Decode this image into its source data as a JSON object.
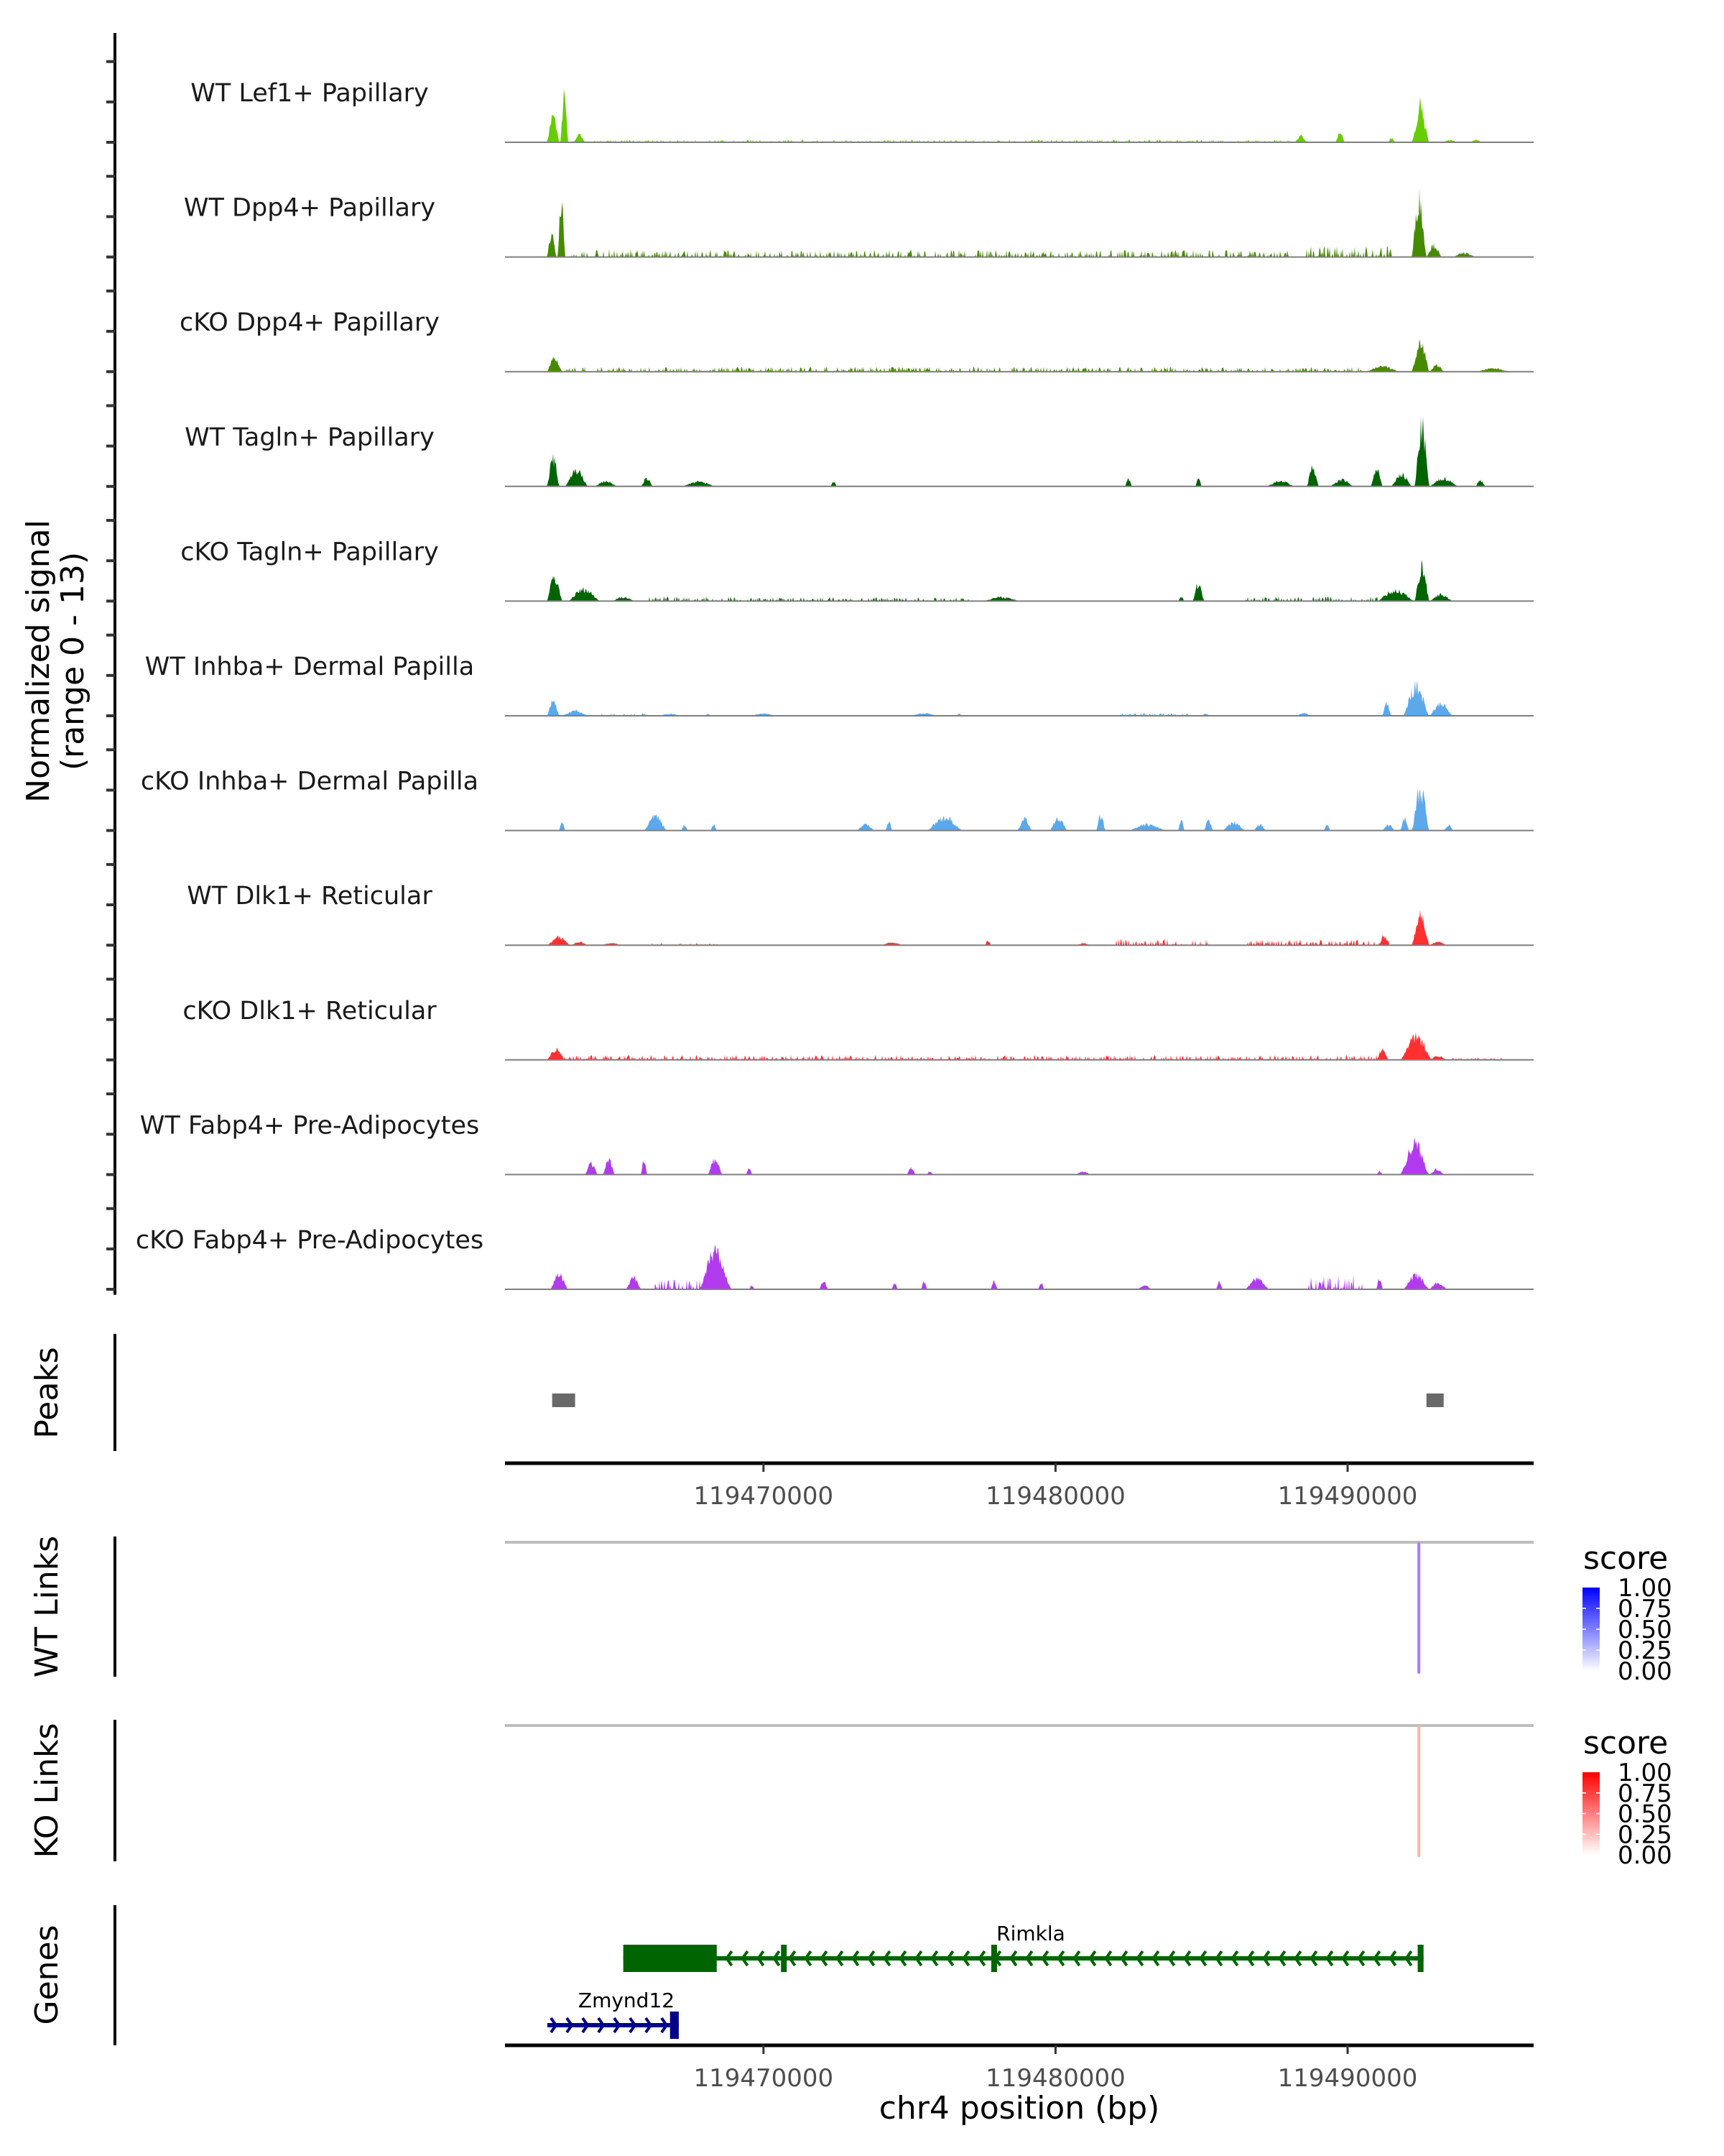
{
  "chart_data": {
    "type": "area",
    "title": "",
    "chromosome": "chr4",
    "xlabel": "chr4 position (bp)",
    "xlim": [
      119461150,
      119496370
    ],
    "xticks": [
      119470000,
      119480000,
      119490000
    ],
    "xtick_labels": [
      "119470000",
      "119480000",
      "119490000"
    ],
    "signal_ylabel": "Normalized signal",
    "signal_ylabel_range": "(range 0 - 13)",
    "signal_ylim": [
      0,
      13
    ],
    "signal_ticks": [
      0,
      5,
      10
    ],
    "coverage_tracks": [
      {
        "name": "WT Lef1+ Papillary",
        "color": "#66CD00",
        "peaks": [
          [
            119462600,
            119463000,
            4.0
          ],
          [
            119463050,
            119463300,
            7.0
          ],
          [
            119463500,
            119463900,
            1.2
          ],
          [
            119464200,
            119466000,
            0.3
          ],
          [
            119466000,
            119488000,
            0.35
          ],
          [
            119488200,
            119488600,
            1.0
          ],
          [
            119489600,
            119489900,
            1.6
          ],
          [
            119491400,
            119491600,
            0.6
          ],
          [
            119492200,
            119492800,
            4.3
          ],
          [
            119492300,
            119492700,
            6.2
          ],
          [
            119493200,
            119493800,
            0.3
          ],
          [
            119494200,
            119494600,
            0.4
          ]
        ]
      },
      {
        "name": "WT Dpp4+ Papillary",
        "color": "#458B00",
        "peaks": [
          [
            119462600,
            119462900,
            3.5
          ],
          [
            119462950,
            119463200,
            8.0
          ],
          [
            119463400,
            119466000,
            1.0
          ],
          [
            119466000,
            119488000,
            0.9
          ],
          [
            119488600,
            119491500,
            1.4
          ],
          [
            119492200,
            119492700,
            8.8
          ],
          [
            119492700,
            119493200,
            1.8
          ],
          [
            119493600,
            119494400,
            0.6
          ]
        ]
      },
      {
        "name": "cKO Dpp4+ Papillary",
        "color": "#458B00",
        "peaks": [
          [
            119462600,
            119463100,
            2.0
          ],
          [
            119463200,
            119465000,
            0.6
          ],
          [
            119465000,
            119490500,
            0.6
          ],
          [
            119490600,
            119491800,
            0.8
          ],
          [
            119492200,
            119492800,
            4.8
          ],
          [
            119492800,
            119493300,
            1.0
          ],
          [
            119494400,
            119495600,
            0.5
          ]
        ]
      },
      {
        "name": "WT Tagln+ Papillary",
        "color": "#006400",
        "peaks": [
          [
            119462600,
            119463000,
            4.2
          ],
          [
            119463200,
            119464000,
            2.5
          ],
          [
            119464200,
            119465000,
            0.8
          ],
          [
            119465800,
            119466200,
            1.2
          ],
          [
            119467200,
            119468400,
            0.7
          ],
          [
            119472300,
            119472500,
            0.7
          ],
          [
            119482400,
            119482600,
            1.2
          ],
          [
            119484800,
            119485000,
            1.2
          ],
          [
            119487200,
            119488200,
            0.8
          ],
          [
            119488600,
            119489000,
            3.0
          ],
          [
            119489400,
            119490200,
            1.0
          ],
          [
            119490800,
            119491200,
            2.5
          ],
          [
            119491500,
            119492200,
            1.8
          ],
          [
            119492300,
            119492800,
            9.0
          ],
          [
            119492800,
            119493800,
            1.2
          ],
          [
            119494400,
            119494700,
            1.0
          ]
        ]
      },
      {
        "name": "cKO Tagln+ Papillary",
        "color": "#006400",
        "peaks": [
          [
            119462600,
            119463100,
            3.8
          ],
          [
            119463300,
            119464400,
            1.8
          ],
          [
            119464800,
            119465600,
            0.6
          ],
          [
            119466000,
            119469000,
            0.6
          ],
          [
            119469000,
            119477000,
            0.5
          ],
          [
            119477500,
            119478800,
            0.6
          ],
          [
            119484200,
            119484400,
            0.7
          ],
          [
            119484700,
            119485100,
            2.6
          ],
          [
            119486500,
            119491000,
            0.6
          ],
          [
            119491000,
            119492300,
            1.6
          ],
          [
            119492300,
            119492800,
            5.3
          ],
          [
            119492800,
            119493600,
            1.0
          ]
        ]
      },
      {
        "name": "WT Inhba+ Dermal Papilla",
        "color": "#5CA8EB",
        "peaks": [
          [
            119462600,
            119463000,
            2.3
          ],
          [
            119463100,
            119464000,
            0.8
          ],
          [
            119464400,
            119466000,
            0.3
          ],
          [
            119466400,
            119467200,
            0.3
          ],
          [
            119468000,
            119468200,
            0.3
          ],
          [
            119469500,
            119470500,
            0.3
          ],
          [
            119475000,
            119476000,
            0.4
          ],
          [
            119476600,
            119476800,
            0.3
          ],
          [
            119482300,
            119484500,
            0.4
          ],
          [
            119485000,
            119485300,
            0.3
          ],
          [
            119488300,
            119488700,
            0.5
          ],
          [
            119491200,
            119491500,
            1.8
          ],
          [
            119491900,
            119492800,
            4.5
          ],
          [
            119492800,
            119493600,
            1.8
          ]
        ]
      },
      {
        "name": "cKO Inhba+ Dermal Papilla",
        "color": "#5CA8EB",
        "peaks": [
          [
            119463000,
            119463200,
            1.2
          ],
          [
            119465900,
            119466700,
            2.2
          ],
          [
            119467200,
            119467400,
            0.9
          ],
          [
            119468200,
            119468400,
            0.9
          ],
          [
            119473200,
            119473800,
            0.9
          ],
          [
            119474200,
            119474400,
            1.5
          ],
          [
            119475600,
            119476800,
            2.0
          ],
          [
            119478700,
            119479200,
            1.8
          ],
          [
            119479800,
            119480400,
            1.8
          ],
          [
            119481400,
            119481700,
            2.3
          ],
          [
            119482500,
            119483800,
            0.9
          ],
          [
            119484200,
            119484400,
            1.5
          ],
          [
            119485100,
            119485400,
            1.5
          ],
          [
            119485700,
            119486500,
            1.2
          ],
          [
            119486800,
            119487200,
            0.9
          ],
          [
            119489200,
            119489400,
            0.9
          ],
          [
            119491200,
            119491600,
            0.9
          ],
          [
            119491800,
            119492100,
            1.8
          ],
          [
            119492200,
            119492800,
            6.2
          ],
          [
            119493300,
            119493600,
            0.9
          ]
        ]
      },
      {
        "name": "WT Dlk1+ Reticular",
        "color": "#FF3030",
        "peaks": [
          [
            119462600,
            119463400,
            1.2
          ],
          [
            119463400,
            119464000,
            0.5
          ],
          [
            119464400,
            119465200,
            0.3
          ],
          [
            119466200,
            119468400,
            0.3
          ],
          [
            119474000,
            119474800,
            0.4
          ],
          [
            119477600,
            119477800,
            0.7
          ],
          [
            119480700,
            119481200,
            0.3
          ],
          [
            119482100,
            119485200,
            0.8
          ],
          [
            119486600,
            119491500,
            0.7
          ],
          [
            119491100,
            119491400,
            1.5
          ],
          [
            119492200,
            119492800,
            4.8
          ],
          [
            119492800,
            119493400,
            0.5
          ]
        ]
      },
      {
        "name": "cKO Dlk1+ Reticular",
        "color": "#FF3030",
        "peaks": [
          [
            119462600,
            119463200,
            1.6
          ],
          [
            119463200,
            119491000,
            0.6
          ],
          [
            119491000,
            119491400,
            1.5
          ],
          [
            119491800,
            119492900,
            3.5
          ],
          [
            119492800,
            119493400,
            0.6
          ],
          [
            119493600,
            119495300,
            0.3
          ]
        ]
      },
      {
        "name": "WT Fabp4+ Pre-Adipocytes",
        "color": "#B23AEE",
        "peaks": [
          [
            119463900,
            119464300,
            1.8
          ],
          [
            119464500,
            119464900,
            2.3
          ],
          [
            119465800,
            119466000,
            2.3
          ],
          [
            119468100,
            119468600,
            2.3
          ],
          [
            119469400,
            119469600,
            1.0
          ],
          [
            119474900,
            119475200,
            1.0
          ],
          [
            119475600,
            119475800,
            0.5
          ],
          [
            119480700,
            119481200,
            0.5
          ],
          [
            119491000,
            119491200,
            0.5
          ],
          [
            119491800,
            119492800,
            4.8
          ],
          [
            119492800,
            119493300,
            0.8
          ]
        ]
      },
      {
        "name": "cKO Fabp4+ Pre-Adipocytes",
        "color": "#B23AEE",
        "peaks": [
          [
            119462700,
            119463300,
            2.3
          ],
          [
            119465300,
            119465800,
            1.8
          ],
          [
            119466200,
            119467800,
            1.2
          ],
          [
            119467800,
            119468900,
            6.0
          ],
          [
            119469500,
            119469700,
            0.5
          ],
          [
            119471900,
            119472200,
            1.2
          ],
          [
            119474400,
            119474600,
            1.0
          ],
          [
            119475400,
            119475600,
            1.2
          ],
          [
            119477800,
            119478000,
            1.2
          ],
          [
            119479400,
            119479600,
            1.0
          ],
          [
            119482800,
            119483300,
            0.6
          ],
          [
            119485500,
            119485700,
            1.4
          ],
          [
            119486500,
            119487300,
            1.6
          ],
          [
            119488600,
            119490500,
            1.8
          ],
          [
            119491000,
            119491200,
            1.8
          ],
          [
            119491900,
            119492800,
            2.2
          ],
          [
            119492800,
            119493400,
            1.0
          ]
        ]
      }
    ],
    "peaks_track": {
      "label": "Peaks",
      "color": "#696969",
      "regions": [
        [
          119462765,
          119463551
        ],
        [
          119492700,
          119493290
        ]
      ]
    },
    "links_tracks": [
      {
        "label": "WT Links",
        "legend_title": "score",
        "low_color": "#FFFFFF",
        "high_color": "#0000FF",
        "legend_ticks": [
          "1.00",
          "0.75",
          "0.50",
          "0.25",
          "0.00"
        ],
        "links": [
          {
            "position": 119492440,
            "score": 0.55,
            "color": "#A87BFF"
          }
        ]
      },
      {
        "label": "KO Links",
        "legend_title": "score",
        "low_color": "#FFFFFF",
        "high_color": "#FF0000",
        "legend_ticks": [
          "1.00",
          "0.75",
          "0.50",
          "0.25",
          "0.00"
        ],
        "links": [
          {
            "position": 119492440,
            "score": 0.35,
            "color": "#FBB4A0"
          }
        ]
      }
    ],
    "genes_track": {
      "label": "Genes",
      "genes": [
        {
          "name": "Rimkla",
          "strand": "-",
          "start": 119465200,
          "end": 119492600,
          "color": "#006400",
          "utr": [
            [
              119465200,
              119468400
            ]
          ],
          "exons": [
            [
              119470600,
              119470700
            ],
            [
              119477800,
              119477950
            ],
            [
              119492400,
              119492600
            ]
          ]
        },
        {
          "name": "Zmynd12",
          "strand": "+",
          "start": 119462600,
          "end": 119467100,
          "color": "#00008B",
          "utr": [],
          "exons": [
            [
              119466800,
              119467100
            ]
          ]
        }
      ]
    }
  }
}
